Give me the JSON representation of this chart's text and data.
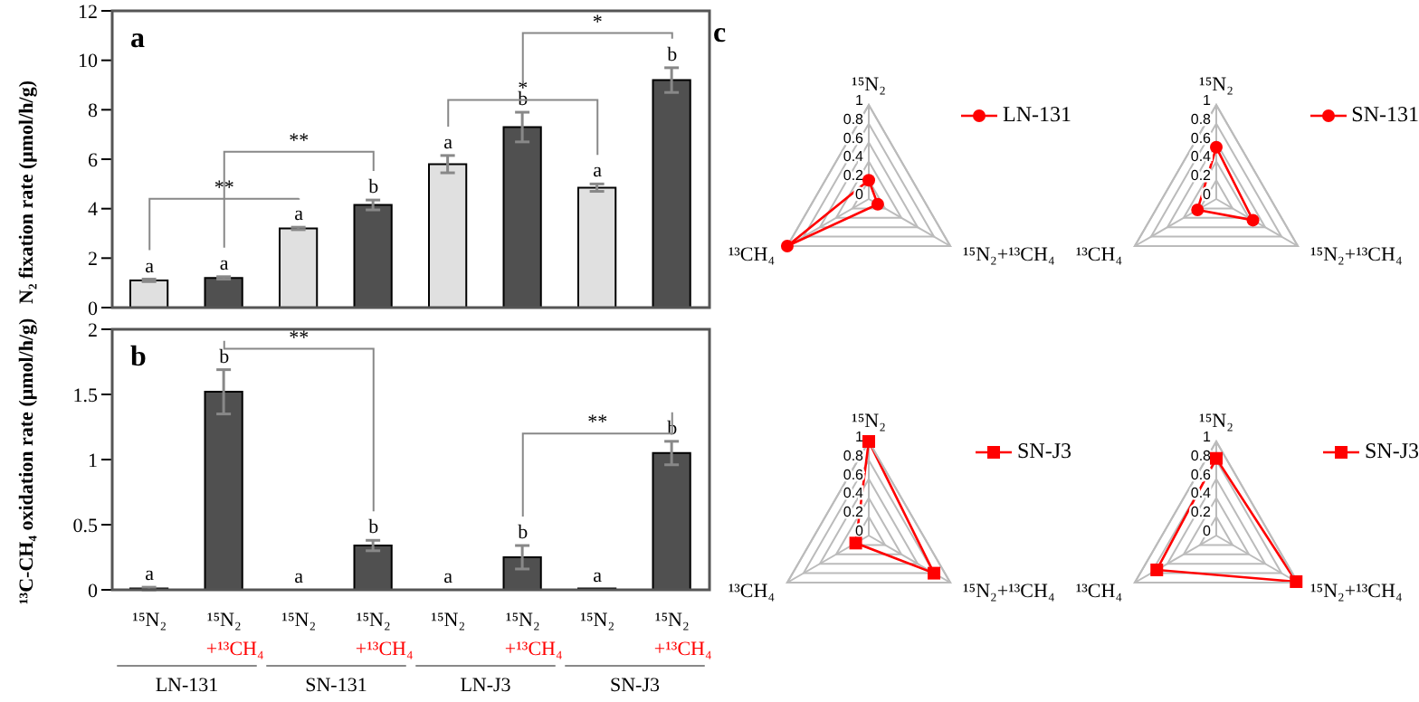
{
  "chart_data": [
    {
      "type": "bar",
      "title": "a",
      "ylabel": "N₂ fixation rate (μmol/h/g)",
      "categories": [
        null,
        null,
        null,
        null,
        null,
        null,
        null,
        null
      ],
      "values": [
        1.1,
        1.2,
        3.2,
        4.15,
        5.8,
        7.3,
        4.85,
        9.2
      ],
      "errors": [
        0.05,
        0.05,
        0.05,
        0.2,
        0.35,
        0.6,
        0.15,
        0.5
      ],
      "colors": [
        "#e0e0e0",
        "#505050",
        "#e0e0e0",
        "#505050",
        "#e0e0e0",
        "#505050",
        "#e0e0e0",
        "#505050"
      ],
      "value_labels": [
        "a",
        "a",
        "a",
        "b",
        "a",
        "b",
        "a",
        "b"
      ],
      "annotations": [
        "**",
        "**",
        "*",
        "*"
      ],
      "ylim": [
        0,
        12
      ],
      "yticks": [
        0,
        2,
        4,
        6,
        8,
        10,
        12
      ],
      "tick_labels": "y",
      "grid": false
    },
    {
      "type": "bar",
      "title": "b",
      "ylabel": "¹³C-CH₄ oxidation rate (μmol/h/g)",
      "categories": [
        "¹⁵N₂",
        "¹⁵N₂\n+¹³CH₄",
        "¹⁵N₂",
        "¹⁵N₂\n+¹³CH₄",
        "¹⁵N₂",
        "¹⁵N₂\n+¹³CH₄",
        "¹⁵N₂",
        "¹⁵N₂\n+¹³CH₄"
      ],
      "values": [
        0.01,
        1.52,
        0,
        0.34,
        0,
        0.25,
        0.01,
        1.05
      ],
      "errors": [
        0.01,
        0.17,
        null,
        0.04,
        null,
        0.09,
        null,
        0.09
      ],
      "colors": [
        "#e0e0e0",
        "#505050",
        "#e0e0e0",
        "#505050",
        "#e0e0e0",
        "#505050",
        "#e0e0e0",
        "#505050"
      ],
      "value_labels": [
        "a",
        "b",
        "a",
        "b",
        "a",
        "b",
        "a",
        "b"
      ],
      "annotations": [
        "**",
        "**",
        "LN-131",
        "SN-131",
        "LN-J3",
        "SN-J3"
      ],
      "ylim": [
        0,
        2
      ],
      "yticks": [
        0,
        {
          "value": 0.5,
          "label": "0.5"
        },
        1,
        {
          "value": 1.5,
          "label": "1.5"
        },
        2
      ],
      "grid": false
    },
    {
      "type": "radar",
      "title": "c",
      "categories": [
        "¹⁵N₂",
        "¹⁵N₂+¹³CH₄",
        "¹³CH₄"
      ],
      "series": [
        {
          "name": "LN-131",
          "color": "#ff0000",
          "values": [
            0.2,
            0.11,
            1.0
          ]
        }
      ],
      "ylim": [
        0,
        1
      ],
      "yticks": [
        0,
        0.2,
        0.4,
        0.6,
        0.8,
        1
      ],
      "grid": true,
      "legend": "right",
      "marker": "circle"
    },
    {
      "type": "radar",
      "categories": [
        "¹⁵N₂",
        "¹⁵N₂+¹³CH₄",
        "¹³CH₄"
      ],
      "series": [
        {
          "name": "SN-131",
          "color": "#ff0000",
          "values": [
            0.55,
            0.45,
            0.23
          ]
        }
      ],
      "ylim": [
        0,
        1
      ],
      "yticks": [
        0,
        0.2,
        0.4,
        0.6,
        0.8,
        1
      ],
      "grid": true,
      "legend": "right",
      "marker": "circle"
    },
    {
      "type": "radar",
      "categories": [
        "¹⁵N₂",
        "¹⁵N₂+¹³CH₄",
        "¹³CH₄"
      ],
      "series": [
        {
          "name": "SN-J3",
          "color": "#ff0000",
          "values": [
            1.0,
            0.8,
            0.16
          ]
        }
      ],
      "ylim": [
        0,
        1
      ],
      "yticks": [
        0,
        0.2,
        0.4,
        0.6,
        0.8,
        1
      ],
      "grid": true,
      "legend": "right",
      "marker": "square"
    },
    {
      "type": "radar",
      "categories": [
        "¹⁵N₂",
        "¹⁵N₂+¹³CH₄",
        "¹³CH₄"
      ],
      "series": [
        {
          "name": "SN-J3",
          "color": "#ff0000",
          "values": [
            0.82,
            0.98,
            0.73
          ]
        }
      ],
      "ylim": [
        0,
        1
      ],
      "yticks": [
        0,
        0.2,
        0.4,
        0.6,
        0.8,
        1
      ],
      "grid": true,
      "legend": "right",
      "marker": "square"
    }
  ]
}
